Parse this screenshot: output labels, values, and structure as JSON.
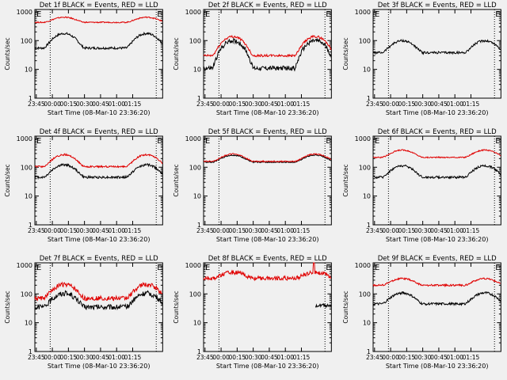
{
  "page": {
    "background": "#f0f0f0"
  },
  "colors": {
    "events": "#000000",
    "lld": "#e00000",
    "axis": "#000000"
  },
  "shared": {
    "xlabel": "Start Time (08-Mar-10 23:36:20)",
    "ylabel": "Counts/sec",
    "xticks": [
      "23:45",
      "00:00",
      "00:15",
      "00:30",
      "00:45",
      "01:00",
      "01:15"
    ],
    "yticks": [
      "1",
      "10",
      "100",
      "1000"
    ],
    "xlim_minutes": [
      -16.33,
      103
    ],
    "ylim_log": [
      1,
      1200
    ],
    "flag_letter": "E",
    "flag_left_letter": "E",
    "dotted_lines_minutes": [
      -2,
      97
    ]
  },
  "chart_data": [
    {
      "type": "line",
      "title": "Det 1f BLACK = Events, RED = LLD",
      "series": [
        {
          "name": "Events",
          "color": "#000000",
          "base": 55,
          "amp": 3.2,
          "noise": 0.04
        },
        {
          "name": "LLD",
          "color": "#e00000",
          "base": 430,
          "amp": 1.5,
          "noise": 0.02
        }
      ]
    },
    {
      "type": "line",
      "title": "Det 2f BLACK = Events, RED = LLD",
      "series": [
        {
          "name": "Events",
          "color": "#000000",
          "base": 11,
          "amp": 9.0,
          "noise": 0.08
        },
        {
          "name": "LLD",
          "color": "#e00000",
          "base": 30,
          "amp": 4.6,
          "noise": 0.04
        }
      ]
    },
    {
      "type": "line",
      "title": "Det 3f BLACK = Events, RED = LLD",
      "series": [
        {
          "name": "Events",
          "color": "#000000",
          "base": 38,
          "amp": 2.6,
          "noise": 0.04
        }
      ]
    },
    {
      "type": "line",
      "title": "Det 4f BLACK = Events, RED = LLD",
      "series": [
        {
          "name": "Events",
          "color": "#000000",
          "base": 45,
          "amp": 2.7,
          "noise": 0.04
        },
        {
          "name": "LLD",
          "color": "#e00000",
          "base": 105,
          "amp": 2.6,
          "noise": 0.03
        }
      ]
    },
    {
      "type": "line",
      "title": "Det 5f BLACK = Events, RED = LLD",
      "series": [
        {
          "name": "Events",
          "color": "#000000",
          "base": 150,
          "amp": 1.75,
          "noise": 0.02
        },
        {
          "name": "LLD",
          "color": "#e00000",
          "base": 160,
          "amp": 1.8,
          "noise": 0.02
        }
      ]
    },
    {
      "type": "line",
      "title": "Det 6f BLACK = Events, RED = LLD",
      "series": [
        {
          "name": "Events",
          "color": "#000000",
          "base": 45,
          "amp": 2.5,
          "noise": 0.04
        },
        {
          "name": "LLD",
          "color": "#e00000",
          "base": 220,
          "amp": 1.8,
          "noise": 0.02
        }
      ]
    },
    {
      "type": "line",
      "title": "Det 7f BLACK = Events, RED = LLD",
      "series": [
        {
          "name": "Events",
          "color": "#000000",
          "base": 35,
          "amp": 3.0,
          "noise": 0.09
        },
        {
          "name": "LLD",
          "color": "#e00000",
          "base": 70,
          "amp": 3.0,
          "noise": 0.08
        }
      ]
    },
    {
      "type": "line",
      "title": "Det 8f BLACK = Events, RED = LLD",
      "series": [
        {
          "name": "LLD",
          "color": "#e00000",
          "base": 350,
          "amp": 1.6,
          "noise": 0.07,
          "spike_minute": 86,
          "spike_value": 1200
        },
        {
          "name": "Events",
          "color": "#000000",
          "base": 40,
          "amp": 1.0,
          "noise": 0.06,
          "start_minute": 88
        }
      ]
    },
    {
      "type": "line",
      "title": "Det 9f BLACK = Events, RED = LLD",
      "series": [
        {
          "name": "Events",
          "color": "#000000",
          "base": 45,
          "amp": 2.4,
          "noise": 0.04
        },
        {
          "name": "LLD",
          "color": "#e00000",
          "base": 200,
          "amp": 1.7,
          "noise": 0.03
        }
      ]
    }
  ]
}
